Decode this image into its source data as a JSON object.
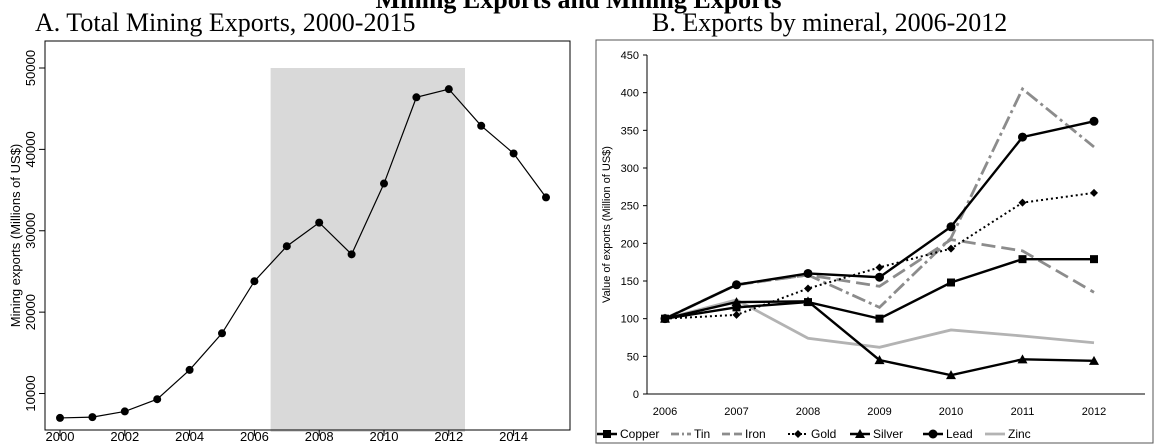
{
  "overall_title_partial": "Mining Exports and Mining Exports",
  "chart_data": [
    {
      "type": "line",
      "title": "A. Total Mining Exports, 2000-2015",
      "xlabel": "",
      "ylabel": "Mining exports (Millions of US$)",
      "xlim": [
        2000,
        2015
      ],
      "ylim": [
        6500,
        50000
      ],
      "xticks": [
        "2000",
        "2002",
        "2004",
        "2006",
        "2008",
        "2010",
        "2012",
        "2014"
      ],
      "yticks": [
        "10000",
        "20000",
        "30000",
        "40000",
        "50000"
      ],
      "shaded_region": [
        2006.5,
        2012.5
      ],
      "grid": false,
      "series": [
        {
          "x": [
            2000,
            2001,
            2002,
            2003,
            2004,
            2005,
            2006,
            2007,
            2008,
            2009,
            2010,
            2011,
            2012,
            2013,
            2014,
            2015
          ],
          "values": [
            7000,
            7100,
            7800,
            9300,
            12900,
            17400,
            23800,
            28100,
            31000,
            27100,
            35800,
            46400,
            47400,
            42900,
            39500,
            34100
          ]
        }
      ]
    },
    {
      "type": "line",
      "title": "B. Exports by mineral, 2006-2012",
      "xlabel": "",
      "ylabel": "Value of exports (Million of US$)",
      "categories": [
        "2006",
        "2007",
        "2008",
        "2009",
        "2010",
        "2011",
        "2012"
      ],
      "ylim": [
        0,
        450
      ],
      "yticks": [
        "0",
        "50",
        "100",
        "150",
        "200",
        "250",
        "300",
        "350",
        "400",
        "450"
      ],
      "grid": false,
      "legend_position": "bottom",
      "series": [
        {
          "name": "Copper",
          "values": [
            100,
            115,
            122,
            100,
            148,
            179,
            179
          ],
          "color": "#000000",
          "style": "solid",
          "marker": "square"
        },
        {
          "name": "Tin",
          "values": [
            100,
            145,
            158,
            115,
            207,
            405,
            328
          ],
          "color": "#8c8c8c",
          "style": "dashdot",
          "marker": "none"
        },
        {
          "name": "Iron",
          "values": [
            100,
            145,
            158,
            143,
            205,
            190,
            135
          ],
          "color": "#8c8c8c",
          "style": "longdash",
          "marker": "none"
        },
        {
          "name": "Gold",
          "values": [
            100,
            105,
            140,
            168,
            193,
            254,
            267
          ],
          "color": "#000000",
          "style": "dotted",
          "marker": "diamond"
        },
        {
          "name": "Silver",
          "values": [
            100,
            122,
            123,
            45,
            25,
            46,
            44
          ],
          "color": "#000000",
          "style": "solid",
          "marker": "triangle"
        },
        {
          "name": "Lead",
          "values": [
            100,
            145,
            160,
            155,
            222,
            341,
            362
          ],
          "color": "#000000",
          "style": "solid",
          "marker": "circle"
        },
        {
          "name": "Zinc",
          "values": [
            100,
            125,
            74,
            62,
            85,
            77,
            68
          ],
          "color": "#b3b3b3",
          "style": "solid",
          "marker": "none"
        }
      ]
    }
  ]
}
